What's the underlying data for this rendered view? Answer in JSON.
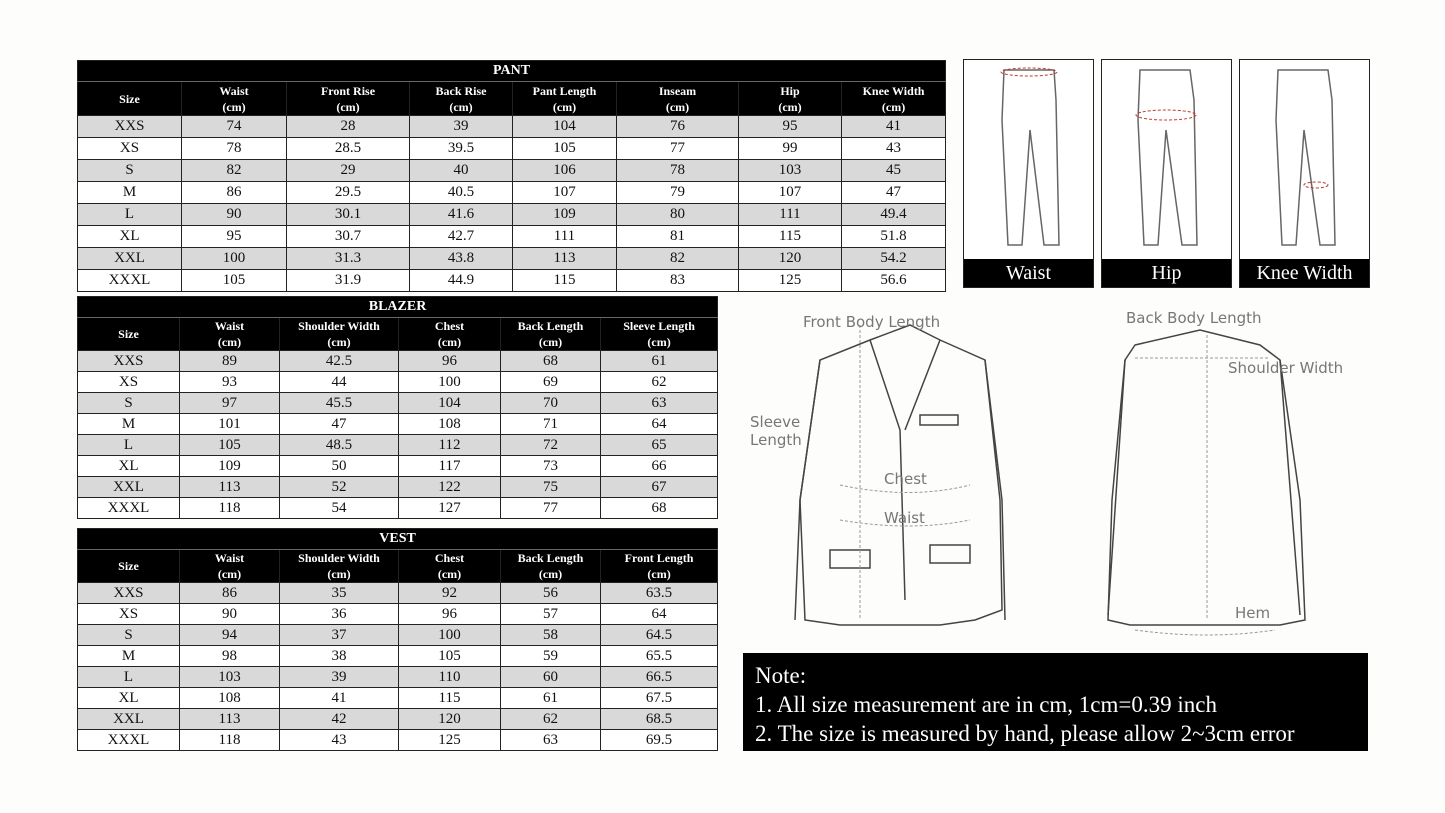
{
  "sizes": [
    "XXS",
    "XS",
    "S",
    "M",
    "L",
    "XL",
    "XXL",
    "XXXL"
  ],
  "pant": {
    "title": "PANT",
    "headers": [
      [
        "Size",
        ""
      ],
      [
        "Waist",
        "(cm)"
      ],
      [
        "Front Rise",
        "(cm)"
      ],
      [
        "Back Rise",
        "(cm)"
      ],
      [
        "Pant Length",
        "(cm)"
      ],
      [
        "Inseam",
        "(cm)"
      ],
      [
        "Hip",
        "(cm)"
      ],
      [
        "Knee Width",
        "(cm)"
      ]
    ],
    "rows": [
      [
        "74",
        "28",
        "39",
        "104",
        "76",
        "95",
        "41"
      ],
      [
        "78",
        "28.5",
        "39.5",
        "105",
        "77",
        "99",
        "43"
      ],
      [
        "82",
        "29",
        "40",
        "106",
        "78",
        "103",
        "45"
      ],
      [
        "86",
        "29.5",
        "40.5",
        "107",
        "79",
        "107",
        "47"
      ],
      [
        "90",
        "30.1",
        "41.6",
        "109",
        "80",
        "111",
        "49.4"
      ],
      [
        "95",
        "30.7",
        "42.7",
        "111",
        "81",
        "115",
        "51.8"
      ],
      [
        "100",
        "31.3",
        "43.8",
        "113",
        "82",
        "120",
        "54.2"
      ],
      [
        "105",
        "31.9",
        "44.9",
        "115",
        "83",
        "125",
        "56.6"
      ]
    ]
  },
  "blazer": {
    "title": "BLAZER",
    "headers": [
      [
        "Size",
        ""
      ],
      [
        "Waist",
        "(cm)"
      ],
      [
        "Shoulder Width",
        "(cm)"
      ],
      [
        "Chest",
        "(cm)"
      ],
      [
        "Back Length",
        "(cm)"
      ],
      [
        "Sleeve Length",
        "(cm)"
      ]
    ],
    "rows": [
      [
        "89",
        "42.5",
        "96",
        "68",
        "61"
      ],
      [
        "93",
        "44",
        "100",
        "69",
        "62"
      ],
      [
        "97",
        "45.5",
        "104",
        "70",
        "63"
      ],
      [
        "101",
        "47",
        "108",
        "71",
        "64"
      ],
      [
        "105",
        "48.5",
        "112",
        "72",
        "65"
      ],
      [
        "109",
        "50",
        "117",
        "73",
        "66"
      ],
      [
        "113",
        "52",
        "122",
        "75",
        "67"
      ],
      [
        "118",
        "54",
        "127",
        "77",
        "68"
      ]
    ]
  },
  "vest": {
    "title": "VEST",
    "headers": [
      [
        "Size",
        ""
      ],
      [
        "Waist",
        "(cm)"
      ],
      [
        "Shoulder Width",
        "(cm)"
      ],
      [
        "Chest",
        "(cm)"
      ],
      [
        "Back Length",
        "(cm)"
      ],
      [
        "Front Length",
        "(cm)"
      ]
    ],
    "rows": [
      [
        "86",
        "35",
        "92",
        "56",
        "63.5"
      ],
      [
        "90",
        "36",
        "96",
        "57",
        "64"
      ],
      [
        "94",
        "37",
        "100",
        "58",
        "64.5"
      ],
      [
        "98",
        "38",
        "105",
        "59",
        "65.5"
      ],
      [
        "103",
        "39",
        "110",
        "60",
        "66.5"
      ],
      [
        "108",
        "41",
        "115",
        "61",
        "67.5"
      ],
      [
        "113",
        "42",
        "120",
        "62",
        "68.5"
      ],
      [
        "118",
        "43",
        "125",
        "63",
        "69.5"
      ]
    ]
  },
  "pant_diagrams": [
    "Waist",
    "Hip",
    "Knee Width"
  ],
  "jacket_labels": {
    "front_body_length": "Front Body Length",
    "sleeve_length_1": "Sleeve",
    "sleeve_length_2": "Length",
    "chest": "Chest",
    "waist": "Waist",
    "back_body_length": "Back Body Length",
    "shoulder_width": "Shoulder Width",
    "hem": "Hem"
  },
  "note": {
    "title": "Note:",
    "line1": "1. All size measurement  are in cm, 1cm=0.39 inch",
    "line2": "2. The size is measured by hand, please allow 2~3cm error"
  },
  "colors": {
    "header_bg": "#000000",
    "row_shade": "#d9d9d9",
    "measure_mark": "#c0392b"
  }
}
